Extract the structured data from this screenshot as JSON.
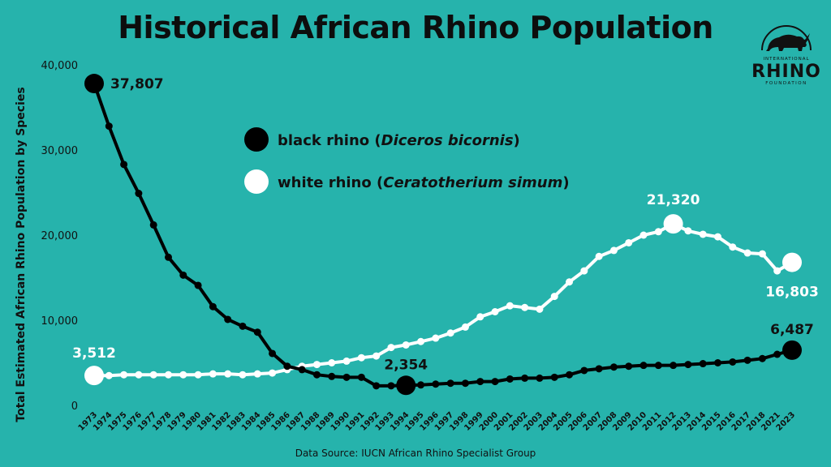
{
  "title": "Historical African Rhino Population",
  "source": "Data Source: IUCN African Rhino Specialist Group",
  "logo": {
    "top": "INTERNATIONAL",
    "name": "RHINO",
    "bottom": "FOUNDATION",
    "icon": "rhino-icon"
  },
  "colors": {
    "background": "#26b3ac",
    "black_rhino": "#000000",
    "white_rhino": "#ffffff"
  },
  "chart_data": {
    "type": "line",
    "title": "Historical African Rhino Population",
    "xlabel": "",
    "ylabel": "Total Estimated African Rhino Population by Species",
    "ylim": [
      0,
      40000
    ],
    "yticks": [
      "0",
      "10,000",
      "20,000",
      "30,000",
      "40,000"
    ],
    "x": [
      "1973",
      "1974",
      "1975",
      "1976",
      "1977",
      "1978",
      "1979",
      "1980",
      "1981",
      "1982",
      "1983",
      "1984",
      "1985",
      "1986",
      "1987",
      "1988",
      "1989",
      "1990",
      "1991",
      "1992",
      "1993",
      "1994",
      "1995",
      "1996",
      "1997",
      "1998",
      "1999",
      "2000",
      "2001",
      "2002",
      "2003",
      "2004",
      "2005",
      "2006",
      "2007",
      "2008",
      "2009",
      "2010",
      "2011",
      "2012",
      "2013",
      "2014",
      "2015",
      "2016",
      "2017",
      "2018",
      "2021",
      "2023"
    ],
    "grid": false,
    "legend_position": "top-center",
    "series": [
      {
        "name": "black rhino",
        "scientific_name": "Diceros bicornis",
        "color": "#000000",
        "values": [
          37807,
          32800,
          28300,
          24900,
          21200,
          17400,
          15300,
          14100,
          11600,
          10100,
          9300,
          8600,
          6100,
          4600,
          4200,
          3600,
          3400,
          3300,
          3300,
          2300,
          2300,
          2354,
          2400,
          2500,
          2600,
          2600,
          2800,
          2800,
          3100,
          3200,
          3200,
          3300,
          3600,
          4100,
          4300,
          4500,
          4600,
          4700,
          4700,
          4700,
          4800,
          4900,
          5000,
          5100,
          5300,
          5500,
          6000,
          6487
        ],
        "labels": [
          {
            "index": 0,
            "text": "37,807"
          },
          {
            "index": 21,
            "text": "2,354"
          },
          {
            "index": 47,
            "text": "6,487"
          }
        ]
      },
      {
        "name": "white rhino",
        "scientific_name": "Ceratotherium simum",
        "color": "#ffffff",
        "values": [
          3512,
          3500,
          3600,
          3600,
          3600,
          3600,
          3600,
          3600,
          3700,
          3700,
          3600,
          3700,
          3800,
          4200,
          4600,
          4800,
          5000,
          5200,
          5600,
          5800,
          6800,
          7100,
          7500,
          7900,
          8500,
          9200,
          10400,
          11000,
          11700,
          11500,
          11300,
          12800,
          14500,
          15800,
          17500,
          18200,
          19100,
          20000,
          20400,
          21320,
          20500,
          20100,
          19800,
          18600,
          17900,
          17800,
          15800,
          16803
        ],
        "labels": [
          {
            "index": 0,
            "text": "3,512"
          },
          {
            "index": 39,
            "text": "21,320"
          },
          {
            "index": 47,
            "text": "16,803"
          }
        ]
      }
    ]
  }
}
